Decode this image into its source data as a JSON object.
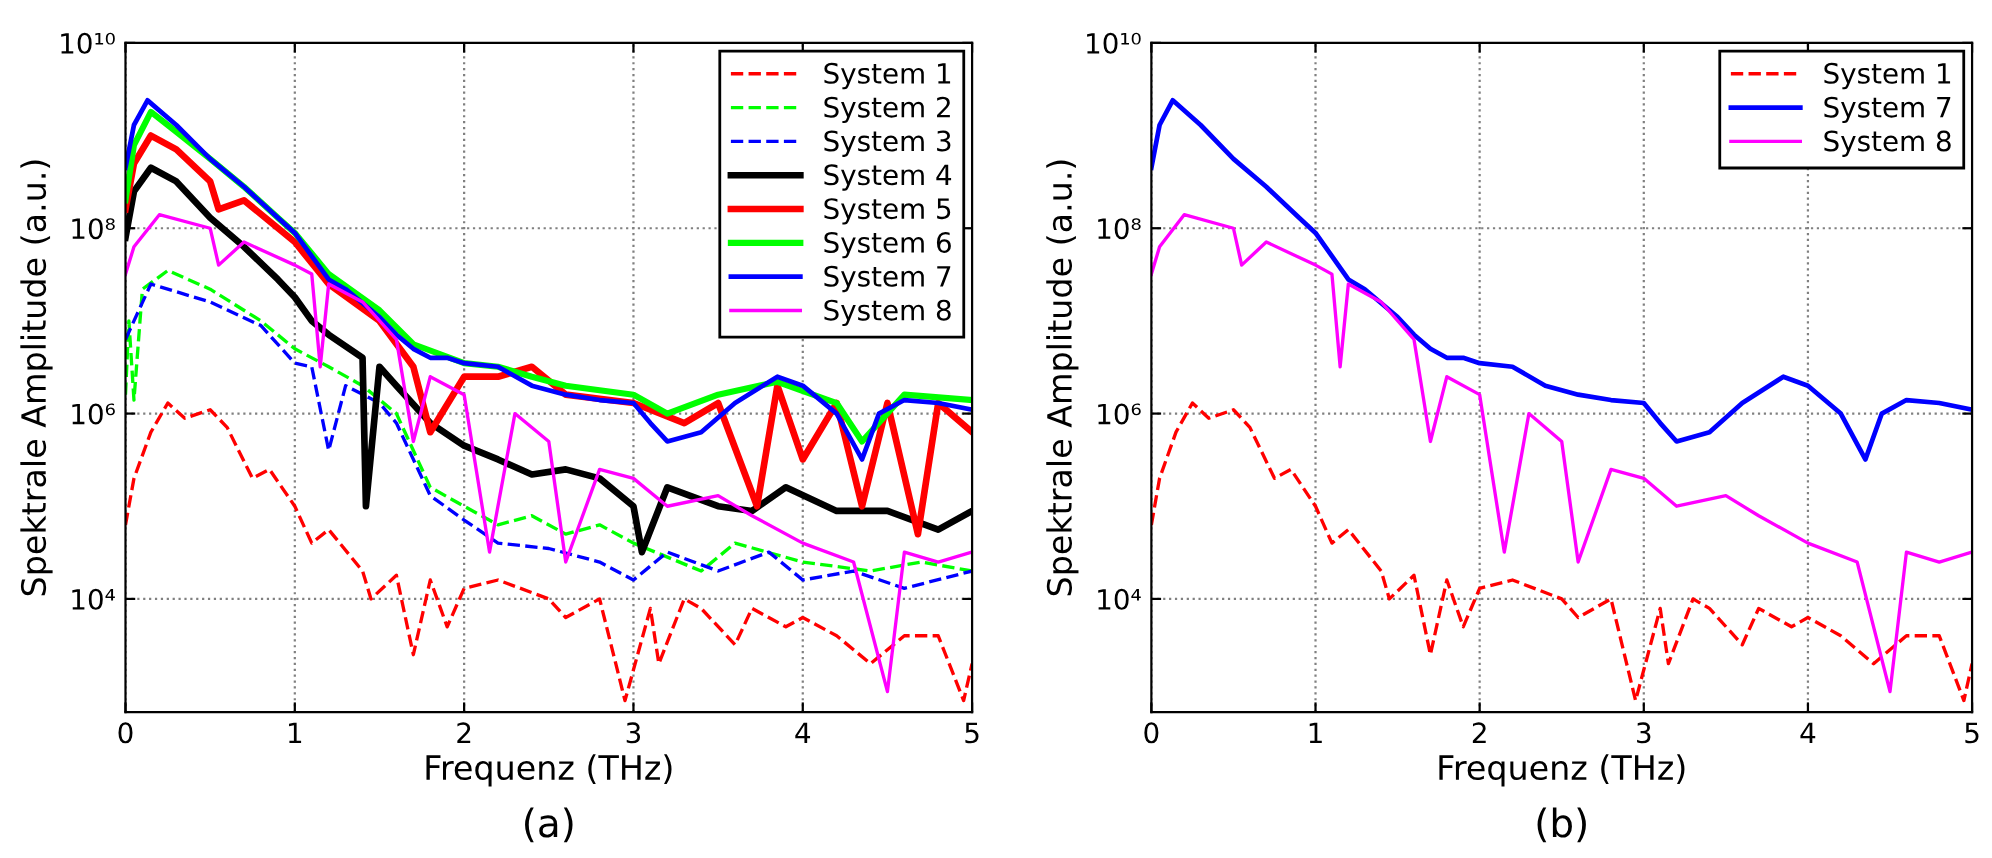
{
  "chart_data": [
    {
      "type": "line",
      "xlabel": "Frequenz (THz)",
      "ylabel": "Spektrale Amplitude (a.u.)",
      "annotations": [
        "(a)"
      ],
      "xlim": [
        0,
        5
      ],
      "xticks": [
        0,
        1,
        2,
        3,
        4,
        5
      ],
      "ylim": [
        600,
        10000000000
      ],
      "log": "y",
      "yticks": [
        {
          "value": 10000,
          "label": "10⁴"
        },
        {
          "value": 1000000,
          "label": "10⁶"
        },
        {
          "value": 100000000,
          "label": "10⁸"
        },
        {
          "value": 10000000000,
          "label": "10¹⁰"
        }
      ],
      "grid": true,
      "legend": "top right",
      "series": [
        {
          "name": "System 1",
          "color": "#ff0000",
          "line_style": "dashed",
          "x": [
            0,
            0.05,
            0.15,
            0.25,
            0.35,
            0.5,
            0.6,
            0.75,
            0.85,
            1.0,
            1.1,
            1.2,
            1.4,
            1.45,
            1.6,
            1.7,
            1.8,
            1.9,
            2.0,
            2.2,
            2.5,
            2.6,
            2.8,
            2.95,
            3.1,
            3.15,
            3.3,
            3.4,
            3.6,
            3.7,
            3.9,
            4.0,
            4.2,
            4.4,
            4.6,
            4.8,
            4.95,
            5.0
          ],
          "values": [
            63000,
            200000,
            630000,
            1300000,
            890000,
            1100000,
            710000,
            200000,
            250000,
            100000,
            40000,
            56000,
            20000,
            10000,
            18000,
            2500,
            16000,
            5000,
            13000,
            16000,
            10000,
            6300,
            10000,
            800,
            7900,
            2000,
            10000,
            7900,
            3200,
            7900,
            5000,
            6300,
            4000,
            2000,
            4000,
            4000,
            800,
            2000
          ]
        },
        {
          "name": "System 2",
          "color": "#00ff00",
          "line_style": "dashed",
          "x": [
            0,
            0.02,
            0.05,
            0.1,
            0.25,
            0.5,
            0.8,
            1.0,
            1.2,
            1.4,
            1.6,
            1.8,
            2.0,
            2.2,
            2.4,
            2.6,
            2.8,
            3.0,
            3.4,
            3.6,
            4.0,
            4.4,
            4.7,
            5.0
          ],
          "values": [
            1600000,
            10000000,
            1400000,
            22000000,
            35000000,
            22000000,
            10000000,
            5000000,
            3200000,
            2000000,
            1000000,
            160000,
            100000,
            63000,
            79000,
            50000,
            63000,
            40000,
            20000,
            40000,
            25000,
            20000,
            25000,
            20000
          ]
        },
        {
          "name": "System 3",
          "color": "#0000ff",
          "line_style": "dashed",
          "x": [
            0,
            0.05,
            0.15,
            0.5,
            0.8,
            1.0,
            1.1,
            1.2,
            1.3,
            1.5,
            1.6,
            1.8,
            2.0,
            2.2,
            2.5,
            2.8,
            3.0,
            3.2,
            3.5,
            3.8,
            4.0,
            4.3,
            4.6,
            5.0
          ],
          "values": [
            6300000,
            10000000,
            25000000,
            16000000,
            8900000,
            3500000,
            3200000,
            400000,
            2000000,
            1300000,
            790000,
            130000,
            71000,
            40000,
            35000,
            25000,
            16000,
            32000,
            20000,
            32000,
            16000,
            20000,
            13000,
            20000
          ]
        },
        {
          "name": "System 4",
          "color": "#000000",
          "line_style": "solid",
          "x": [
            0,
            0.05,
            0.15,
            0.3,
            0.5,
            0.7,
            0.9,
            1.0,
            1.1,
            1.2,
            1.4,
            1.42,
            1.5,
            1.6,
            1.8,
            2.0,
            2.2,
            2.4,
            2.6,
            2.8,
            3.0,
            3.05,
            3.2,
            3.5,
            3.7,
            3.9,
            4.2,
            4.5,
            4.8,
            5.0
          ],
          "values": [
            79000000,
            250000000,
            450000000,
            320000000,
            130000000,
            63000000,
            28000000,
            18000000,
            10000000,
            7100000,
            4000000,
            100000,
            3200000,
            2000000,
            790000,
            450000,
            320000,
            220000,
            250000,
            200000,
            100000,
            32000,
            160000,
            100000,
            89000,
            160000,
            89000,
            89000,
            56000,
            89000
          ]
        },
        {
          "name": "System 5",
          "color": "#ff0000",
          "line_style": "solid",
          "x": [
            0,
            0.05,
            0.15,
            0.3,
            0.5,
            0.55,
            0.7,
            1.0,
            1.2,
            1.5,
            1.7,
            1.8,
            2.0,
            2.2,
            2.4,
            2.6,
            3.0,
            3.3,
            3.5,
            3.73,
            3.85,
            4.0,
            4.2,
            4.35,
            4.5,
            4.68,
            4.8,
            5.0
          ],
          "values": [
            160000000,
            500000000,
            1000000000,
            710000000,
            320000000,
            160000000,
            200000000,
            71000000,
            25000000,
            10000000,
            3200000,
            630000,
            2500000,
            2500000,
            3200000,
            1600000,
            1300000,
            790000,
            1300000,
            100000,
            2000000,
            320000,
            1300000,
            100000,
            1300000,
            50000,
            1300000,
            630000
          ]
        },
        {
          "name": "System 6",
          "color": "#00ff00",
          "line_style": "solid",
          "x": [
            0,
            0.05,
            0.15,
            0.3,
            0.5,
            0.7,
            0.9,
            1.0,
            1.2,
            1.5,
            1.7,
            2.0,
            2.2,
            2.4,
            2.6,
            3.0,
            3.2,
            3.5,
            3.85,
            4.2,
            4.35,
            4.6,
            5.0
          ],
          "values": [
            200000000,
            790000000,
            1800000000,
            1100000000,
            560000000,
            280000000,
            130000000,
            89000000,
            32000000,
            13000000,
            5600000,
            3500000,
            3200000,
            2500000,
            2000000,
            1600000,
            1000000,
            1600000,
            2200000,
            1300000,
            500000,
            1600000,
            1400000
          ]
        },
        {
          "name": "System 7",
          "color": "#0000ff",
          "line_style": "solid",
          "x": [
            0,
            0.05,
            0.13,
            0.3,
            0.5,
            0.7,
            0.9,
            1.0,
            1.1,
            1.2,
            1.3,
            1.5,
            1.6,
            1.7,
            1.8,
            1.9,
            2.0,
            2.2,
            2.4,
            2.6,
            2.8,
            3.0,
            3.1,
            3.2,
            3.4,
            3.6,
            3.85,
            4.0,
            4.2,
            4.35,
            4.45,
            4.6,
            4.8,
            5.0
          ],
          "values": [
            450000000,
            1300000000,
            2400000000,
            1300000000,
            560000000,
            280000000,
            130000000,
            89000000,
            50000000,
            28000000,
            22000000,
            11000000,
            7100000,
            5000000,
            4000000,
            4000000,
            3500000,
            3200000,
            2000000,
            1600000,
            1400000,
            1300000,
            790000,
            500000,
            630000,
            1300000,
            2500000,
            2000000,
            1000000,
            320000,
            1000000,
            1400000,
            1300000,
            1100000
          ]
        },
        {
          "name": "System 8",
          "color": "#ff00ff",
          "line_style": "solid",
          "x": [
            0,
            0.05,
            0.2,
            0.5,
            0.55,
            0.7,
            1.0,
            1.1,
            1.15,
            1.2,
            1.4,
            1.6,
            1.7,
            1.8,
            2.0,
            2.15,
            2.3,
            2.5,
            2.6,
            2.8,
            3.0,
            3.2,
            3.5,
            3.7,
            4.0,
            4.3,
            4.5,
            4.6,
            4.8,
            5.0
          ],
          "values": [
            32000000,
            63000000,
            140000000,
            100000000,
            40000000,
            71000000,
            40000000,
            32000000,
            3200000,
            25000000,
            16000000,
            6300000,
            500000,
            2500000,
            1600000,
            32000,
            1000000,
            500000,
            25000,
            250000,
            200000,
            100000,
            130000,
            79000,
            40000,
            25000,
            1000,
            32000,
            25000,
            32000
          ]
        }
      ]
    },
    {
      "type": "line",
      "xlabel": "Frequenz (THz)",
      "ylabel": "Spektrale Amplitude (a.u.)",
      "annotations": [
        "(b)"
      ],
      "xlim": [
        0,
        5
      ],
      "xticks": [
        0,
        1,
        2,
        3,
        4,
        5
      ],
      "ylim": [
        600,
        10000000000
      ],
      "log": "y",
      "yticks": [
        {
          "value": 10000,
          "label": "10⁴"
        },
        {
          "value": 1000000,
          "label": "10⁶"
        },
        {
          "value": 100000000,
          "label": "10⁸"
        },
        {
          "value": 10000000000,
          "label": "10¹⁰"
        }
      ],
      "grid": true,
      "legend": "top right",
      "series": [
        {
          "name": "System 1",
          "color": "#ff0000",
          "line_style": "dashed",
          "x": [
            0,
            0.05,
            0.15,
            0.25,
            0.35,
            0.5,
            0.6,
            0.75,
            0.85,
            1.0,
            1.1,
            1.2,
            1.4,
            1.45,
            1.6,
            1.7,
            1.8,
            1.9,
            2.0,
            2.2,
            2.5,
            2.6,
            2.8,
            2.95,
            3.1,
            3.15,
            3.3,
            3.4,
            3.6,
            3.7,
            3.9,
            4.0,
            4.2,
            4.4,
            4.6,
            4.8,
            4.95,
            5.0
          ],
          "values": [
            63000,
            200000,
            630000,
            1300000,
            890000,
            1100000,
            710000,
            200000,
            250000,
            100000,
            40000,
            56000,
            20000,
            10000,
            18000,
            2500,
            16000,
            5000,
            13000,
            16000,
            10000,
            6300,
            10000,
            800,
            7900,
            2000,
            10000,
            7900,
            3200,
            7900,
            5000,
            6300,
            4000,
            2000,
            4000,
            4000,
            800,
            2000
          ]
        },
        {
          "name": "System 7",
          "color": "#0000ff",
          "line_style": "solid",
          "x": [
            0,
            0.05,
            0.13,
            0.3,
            0.5,
            0.7,
            0.9,
            1.0,
            1.1,
            1.2,
            1.3,
            1.5,
            1.6,
            1.7,
            1.8,
            1.9,
            2.0,
            2.2,
            2.4,
            2.6,
            2.8,
            3.0,
            3.1,
            3.2,
            3.4,
            3.6,
            3.85,
            4.0,
            4.2,
            4.35,
            4.45,
            4.6,
            4.8,
            5.0
          ],
          "values": [
            450000000,
            1300000000,
            2400000000,
            1300000000,
            560000000,
            280000000,
            130000000,
            89000000,
            50000000,
            28000000,
            22000000,
            11000000,
            7100000,
            5000000,
            4000000,
            4000000,
            3500000,
            3200000,
            2000000,
            1600000,
            1400000,
            1300000,
            790000,
            500000,
            630000,
            1300000,
            2500000,
            2000000,
            1000000,
            320000,
            1000000,
            1400000,
            1300000,
            1100000
          ]
        },
        {
          "name": "System 8",
          "color": "#ff00ff",
          "line_style": "solid",
          "x": [
            0,
            0.05,
            0.2,
            0.5,
            0.55,
            0.7,
            1.0,
            1.1,
            1.15,
            1.2,
            1.4,
            1.6,
            1.7,
            1.8,
            2.0,
            2.15,
            2.3,
            2.5,
            2.6,
            2.8,
            3.0,
            3.2,
            3.5,
            3.7,
            4.0,
            4.3,
            4.5,
            4.6,
            4.8,
            5.0
          ],
          "values": [
            32000000,
            63000000,
            140000000,
            100000000,
            40000000,
            71000000,
            40000000,
            32000000,
            3200000,
            25000000,
            16000000,
            6300000,
            500000,
            2500000,
            1600000,
            32000,
            1000000,
            500000,
            25000,
            250000,
            200000,
            100000,
            130000,
            79000,
            40000,
            25000,
            1000,
            32000,
            25000,
            32000
          ]
        }
      ]
    }
  ]
}
